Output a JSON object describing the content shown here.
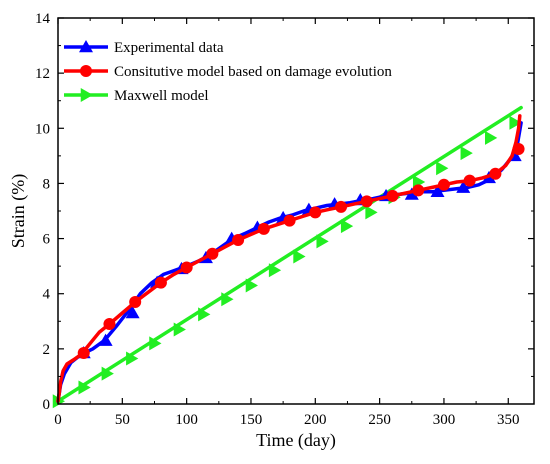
{
  "chart_data": {
    "type": "line",
    "xlabel": "Time (day)",
    "ylabel": "Strain (%)",
    "xlim": [
      0,
      370
    ],
    "ylim": [
      0,
      14
    ],
    "x_ticks": [
      "0",
      "50",
      "100",
      "150",
      "200",
      "250",
      "300",
      "350"
    ],
    "y_ticks": [
      "2",
      "4",
      "6",
      "8",
      "10",
      "12",
      "14"
    ],
    "grid": false,
    "legend_position": "top-left",
    "series": [
      {
        "name": "Experimental data",
        "color": "#0000ff",
        "marker": "triangle-up",
        "line": [
          [
            0,
            0.1
          ],
          [
            2,
            0.7
          ],
          [
            5,
            1.1
          ],
          [
            10,
            1.5
          ],
          [
            18,
            1.8
          ],
          [
            27,
            2.0
          ],
          [
            36,
            2.3
          ],
          [
            45,
            2.8
          ],
          [
            55,
            3.4
          ],
          [
            64,
            4.0
          ],
          [
            73,
            4.4
          ],
          [
            82,
            4.7
          ],
          [
            91,
            4.85
          ],
          [
            100,
            5.0
          ],
          [
            110,
            5.2
          ],
          [
            118,
            5.4
          ],
          [
            127,
            5.7
          ],
          [
            136,
            6.0
          ],
          [
            146,
            6.2
          ],
          [
            155,
            6.4
          ],
          [
            164,
            6.6
          ],
          [
            173,
            6.75
          ],
          [
            182,
            6.85
          ],
          [
            191,
            7.0
          ],
          [
            200,
            7.1
          ],
          [
            209,
            7.2
          ],
          [
            218,
            7.25
          ],
          [
            227,
            7.3
          ],
          [
            236,
            7.38
          ],
          [
            245,
            7.45
          ],
          [
            255,
            7.55
          ],
          [
            264,
            7.6
          ],
          [
            273,
            7.65
          ],
          [
            282,
            7.7
          ],
          [
            291,
            7.7
          ],
          [
            300,
            7.75
          ],
          [
            309,
            7.8
          ],
          [
            318,
            7.85
          ],
          [
            327,
            7.95
          ],
          [
            336,
            8.15
          ],
          [
            345,
            8.5
          ],
          [
            352,
            8.9
          ],
          [
            357,
            9.4
          ],
          [
            360,
            10.2
          ]
        ],
        "markers": [
          [
            20,
            1.85
          ],
          [
            37,
            2.3
          ],
          [
            58,
            3.3
          ],
          [
            77,
            4.4
          ],
          [
            96,
            4.9
          ],
          [
            115,
            5.3
          ],
          [
            135,
            6.0
          ],
          [
            155,
            6.4
          ],
          [
            175,
            6.75
          ],
          [
            195,
            7.05
          ],
          [
            215,
            7.25
          ],
          [
            235,
            7.4
          ],
          [
            255,
            7.55
          ],
          [
            275,
            7.6
          ],
          [
            295,
            7.7
          ],
          [
            315,
            7.85
          ],
          [
            335,
            8.2
          ],
          [
            355,
            9.0
          ]
        ]
      },
      {
        "name": "Consitutive model based on damage evolution",
        "color": "#ff0000",
        "marker": "circle",
        "line": [
          [
            0,
            0.1
          ],
          [
            1,
            0.4
          ],
          [
            2,
            0.8
          ],
          [
            4,
            1.2
          ],
          [
            7,
            1.45
          ],
          [
            12,
            1.6
          ],
          [
            18,
            1.8
          ],
          [
            25,
            2.2
          ],
          [
            32,
            2.6
          ],
          [
            40,
            2.9
          ],
          [
            50,
            3.3
          ],
          [
            60,
            3.7
          ],
          [
            70,
            4.05
          ],
          [
            80,
            4.4
          ],
          [
            90,
            4.7
          ],
          [
            100,
            4.95
          ],
          [
            110,
            5.2
          ],
          [
            120,
            5.45
          ],
          [
            130,
            5.7
          ],
          [
            140,
            5.95
          ],
          [
            150,
            6.15
          ],
          [
            160,
            6.35
          ],
          [
            170,
            6.5
          ],
          [
            180,
            6.65
          ],
          [
            190,
            6.8
          ],
          [
            200,
            6.95
          ],
          [
            210,
            7.05
          ],
          [
            220,
            7.15
          ],
          [
            230,
            7.25
          ],
          [
            240,
            7.35
          ],
          [
            250,
            7.45
          ],
          [
            260,
            7.55
          ],
          [
            270,
            7.65
          ],
          [
            280,
            7.75
          ],
          [
            290,
            7.85
          ],
          [
            300,
            7.95
          ],
          [
            310,
            8.05
          ],
          [
            320,
            8.1
          ],
          [
            330,
            8.2
          ],
          [
            340,
            8.35
          ],
          [
            348,
            8.65
          ],
          [
            353,
            9.0
          ],
          [
            356,
            9.5
          ],
          [
            358,
            10.0
          ],
          [
            359,
            10.45
          ]
        ],
        "markers": [
          [
            20,
            1.85
          ],
          [
            40,
            2.9
          ],
          [
            60,
            3.7
          ],
          [
            80,
            4.4
          ],
          [
            100,
            4.95
          ],
          [
            120,
            5.45
          ],
          [
            140,
            5.95
          ],
          [
            160,
            6.35
          ],
          [
            180,
            6.65
          ],
          [
            200,
            6.95
          ],
          [
            220,
            7.15
          ],
          [
            240,
            7.35
          ],
          [
            260,
            7.55
          ],
          [
            280,
            7.75
          ],
          [
            300,
            7.95
          ],
          [
            320,
            8.1
          ],
          [
            340,
            8.35
          ],
          [
            358,
            9.25
          ]
        ]
      },
      {
        "name": "Maxwell model",
        "color": "#22ee22",
        "marker": "triangle-right",
        "line": [
          [
            0,
            0.1
          ],
          [
            360,
            10.75
          ]
        ],
        "markers": [
          [
            0,
            0.1
          ],
          [
            20,
            0.6
          ],
          [
            38,
            1.1
          ],
          [
            57,
            1.65
          ],
          [
            75,
            2.2
          ],
          [
            94,
            2.7
          ],
          [
            113,
            3.25
          ],
          [
            131,
            3.8
          ],
          [
            150,
            4.3
          ],
          [
            168,
            4.85
          ],
          [
            187,
            5.35
          ],
          [
            205,
            5.9
          ],
          [
            224,
            6.45
          ],
          [
            243,
            6.95
          ],
          [
            261,
            7.5
          ],
          [
            280,
            8.05
          ],
          [
            298,
            8.55
          ],
          [
            317,
            9.1
          ],
          [
            336,
            9.65
          ],
          [
            355,
            10.2
          ]
        ]
      }
    ]
  }
}
